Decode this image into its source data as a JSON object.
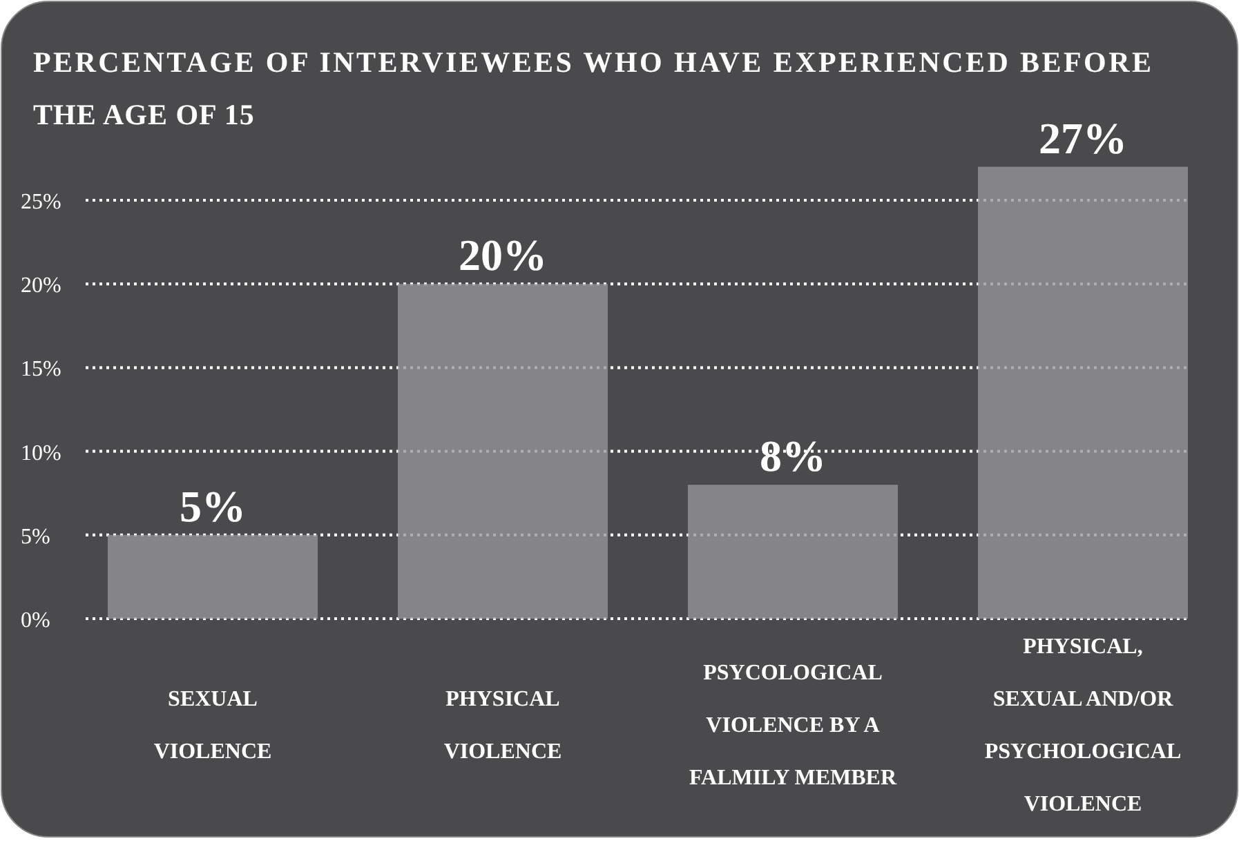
{
  "chart_data": {
    "type": "bar",
    "title": "PERCENTAGE OF INTERVIEWEES WHO HAVE EXPERIENCED BEFORE THE AGE OF 15",
    "categories": [
      "SEXUAL VIOLENCE",
      "PHYSICAL VIOLENCE",
      "PSYCOLOGICAL VIOLENCE BY A FALMILY MEMBER",
      "PHYSICAL, SEXUAL AND/OR PSYCHOLOGICAL VIOLENCE"
    ],
    "values": [
      5,
      20,
      8,
      27
    ],
    "color": "#858589",
    "data_labels": true,
    "value_labels": [
      "5%",
      "20%",
      "8%",
      "27%"
    ],
    "ylim": [
      0,
      27
    ],
    "yticks": [
      {
        "value": 0,
        "label": "0%"
      },
      {
        "value": 5,
        "label": "5%"
      },
      {
        "value": 10,
        "label": "10%"
      },
      {
        "value": 15,
        "label": "15%"
      },
      {
        "value": 20,
        "label": "20%"
      },
      {
        "value": 25,
        "label": "25%"
      }
    ],
    "grid": "y"
  }
}
